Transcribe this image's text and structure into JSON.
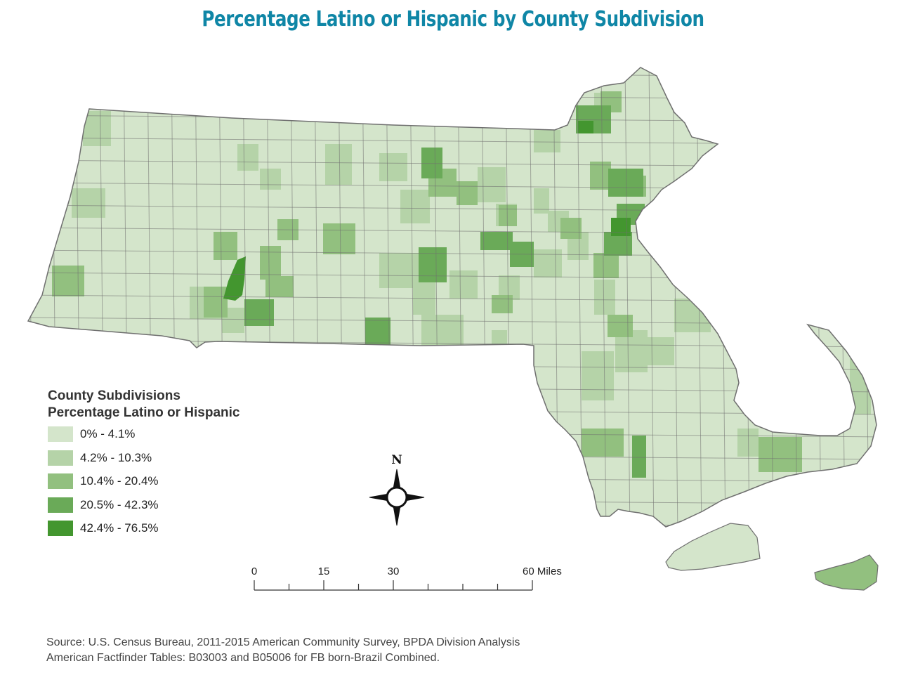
{
  "title": "Percentage Latino or Hispanic by County Subdivision",
  "colors": {
    "title": "#0f86a6",
    "outline": "#6f6f6f",
    "class_1": "#d4e5cb",
    "class_2": "#b5d3a8",
    "class_3": "#92c07f",
    "class_4": "#6aaa58",
    "class_5": "#43962f",
    "background": "#ffffff"
  },
  "legend": {
    "title_line1": "County Subdivisions",
    "title_line2": "Percentage Latino or Hispanic",
    "classes": [
      {
        "label": "0% - 4.1%",
        "color": "#d4e5cb"
      },
      {
        "label": "4.2% - 10.3%",
        "color": "#b5d3a8"
      },
      {
        "label": "10.4% - 20.4%",
        "color": "#92c07f"
      },
      {
        "label": "20.5% - 42.3%",
        "color": "#6aaa58"
      },
      {
        "label": "42.4% - 76.5%",
        "color": "#43962f"
      }
    ]
  },
  "compass": {
    "north_label": "N"
  },
  "scale_bar": {
    "labels": [
      "0",
      "15",
      "30",
      "60 Miles"
    ],
    "values": [
      0,
      15,
      30,
      60
    ]
  },
  "source": {
    "line1": "Source: U.S. Census Bureau, 2011-2015 American Community Survey, BPDA Division Analysis",
    "line2": "American Factfinder Tables: B03003 and B05006 for FB born-Brazil Combined."
  }
}
